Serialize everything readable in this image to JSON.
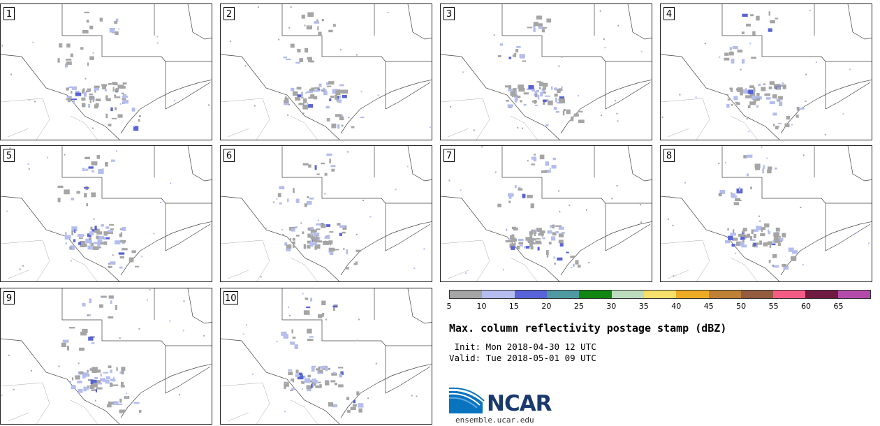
{
  "panels": [
    {
      "label": "1"
    },
    {
      "label": "2"
    },
    {
      "label": "3"
    },
    {
      "label": "4"
    },
    {
      "label": "5"
    },
    {
      "label": "6"
    },
    {
      "label": "7"
    },
    {
      "label": "8"
    },
    {
      "label": "9"
    },
    {
      "label": "10"
    }
  ],
  "colorbar": {
    "colors": [
      "#a5a5a5",
      "#b4bdee",
      "#5763d6",
      "#4e9aa0",
      "#118612",
      "#bddcbe",
      "#f5e06b",
      "#eeac26",
      "#bd8137",
      "#945b3e",
      "#f55c85",
      "#6f1b41",
      "#b44bab"
    ],
    "ticks": [
      "5",
      "10",
      "15",
      "20",
      "25",
      "30",
      "35",
      "40",
      "45",
      "50",
      "55",
      "60",
      "65"
    ]
  },
  "title": "Max. column reflectivity postage stamp (dBZ)",
  "init": " Init: Mon 2018-04-30 12 UTC",
  "valid": "Valid: Tue 2018-05-01 09 UTC",
  "logo": {
    "text": "NCAR",
    "url": "ensemble.ucar.edu"
  }
}
